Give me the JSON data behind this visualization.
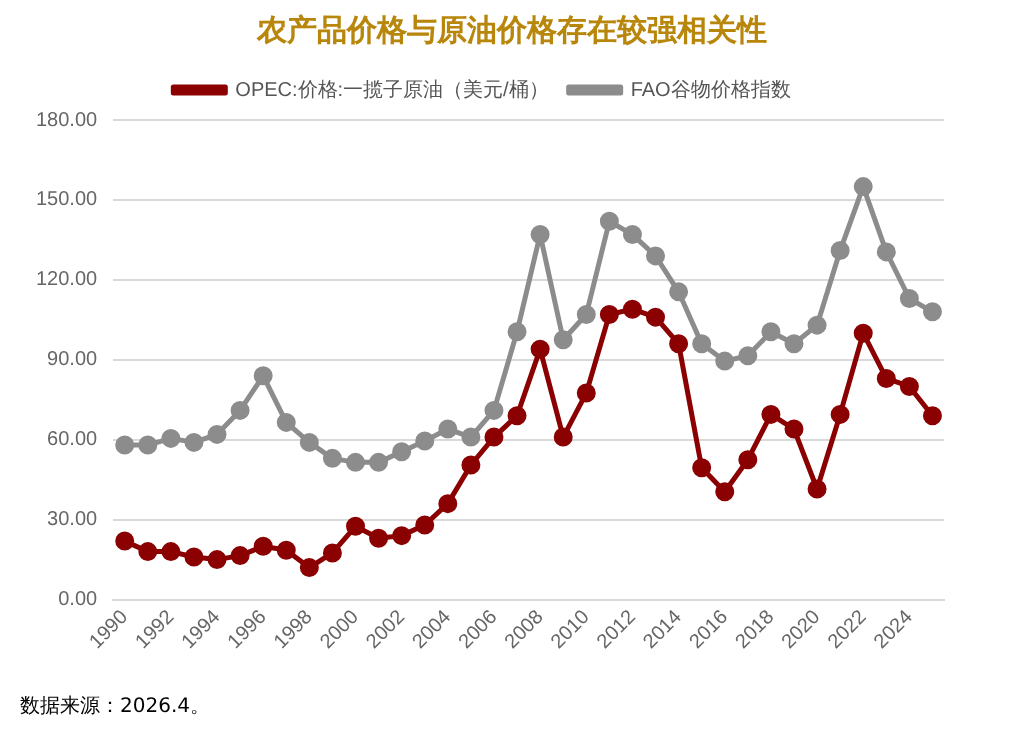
{
  "chart_data": {
    "type": "line",
    "title": "农产品价格与原油价格存在较强相关性",
    "categories": [
      "1990",
      null,
      "1992",
      null,
      "1994",
      null,
      "1996",
      null,
      "1998",
      null,
      "2000",
      null,
      "2002",
      null,
      "2004",
      null,
      "2006",
      null,
      "2008",
      null,
      "2010",
      null,
      "2012",
      null,
      "2014",
      null,
      "2016",
      null,
      "2018",
      null,
      "2020",
      null,
      "2022",
      null,
      "2024",
      null
    ],
    "series": [
      {
        "name": "OPEC:价格:一揽子原油（美元/桶）",
        "color": "#8b0000",
        "values": [
          22,
          18,
          18,
          16,
          15,
          16.5,
          20,
          18.5,
          12,
          17.5,
          27.5,
          23,
          24,
          28,
          36,
          50.5,
          61,
          69,
          94,
          61,
          77.5,
          107,
          109,
          106,
          96,
          49.5,
          40.5,
          52.5,
          69.5,
          64,
          41.5,
          69.5,
          100,
          83,
          80,
          69
        ]
      },
      {
        "name": "FAO谷物价格指数",
        "color": "#8c8c8c",
        "values": [
          58,
          58,
          60.5,
          59,
          62,
          71,
          84,
          66.5,
          59,
          53,
          51.5,
          51.5,
          55.5,
          59.5,
          64,
          61,
          71,
          100.5,
          137,
          97.5,
          107,
          142,
          137,
          129,
          115.5,
          96,
          89.5,
          91.5,
          100.5,
          96,
          103,
          131,
          155,
          130.5,
          113,
          108
        ]
      }
    ],
    "ylim": [
      0,
      180
    ],
    "yticks": [
      {
        "value": 0,
        "label": "0.00"
      },
      {
        "value": 30,
        "label": "30.00"
      },
      {
        "value": 60,
        "label": "60.00"
      },
      {
        "value": 90,
        "label": "90.00"
      },
      {
        "value": 120,
        "label": "120.00"
      },
      {
        "value": 150,
        "label": "150.00"
      },
      {
        "value": 180,
        "label": "180.00"
      }
    ],
    "grid": "y",
    "legend": "top",
    "marker": "circle",
    "line_style": "solid",
    "annotations": [
      "数据来源：2026.4。"
    ]
  }
}
